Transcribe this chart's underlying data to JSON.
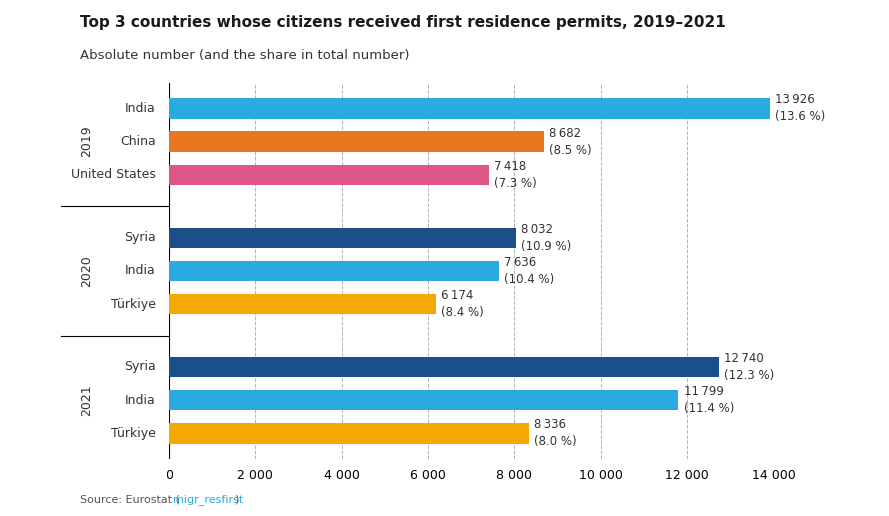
{
  "title": "Top 3 countries whose citizens received first residence permits, 2019–2021",
  "subtitle": "Absolute number (and the share in total number)",
  "source": "Source: Eurostat (migr_resfirst)",
  "bars": [
    {
      "year": "2019",
      "country": "India",
      "value": 13926,
      "share": "13.6 %",
      "color": "#29ABE2"
    },
    {
      "year": "2019",
      "country": "China",
      "value": 8682,
      "share": "8.5 %",
      "color": "#E87722"
    },
    {
      "year": "2019",
      "country": "United States",
      "value": 7418,
      "share": "7.3 %",
      "color": "#E05587"
    },
    {
      "year": "2020",
      "country": "Syria",
      "value": 8032,
      "share": "10.9 %",
      "color": "#1B4F8A"
    },
    {
      "year": "2020",
      "country": "India",
      "value": 7636,
      "share": "10.4 %",
      "color": "#29ABE2"
    },
    {
      "year": "2020",
      "country": "Türkiye",
      "value": 6174,
      "share": "8.4 %",
      "color": "#F5A800"
    },
    {
      "year": "2021",
      "country": "Syria",
      "value": 12740,
      "share": "12.3 %",
      "color": "#1B4F8A"
    },
    {
      "year": "2021",
      "country": "India",
      "value": 11799,
      "share": "11.4 %",
      "color": "#29ABE2"
    },
    {
      "year": "2021",
      "country": "Türkiye",
      "value": 8336,
      "share": "8.0 %",
      "color": "#F5A800"
    }
  ],
  "xlim": [
    0,
    14000
  ],
  "xticks": [
    0,
    2000,
    4000,
    6000,
    8000,
    10000,
    12000,
    14000
  ],
  "xtick_labels": [
    "0",
    "2 000",
    "4 000",
    "6 000",
    "8 000",
    "10 000",
    "12 000",
    "14 000"
  ],
  "background_color": "#FFFFFF",
  "bar_height": 0.55
}
